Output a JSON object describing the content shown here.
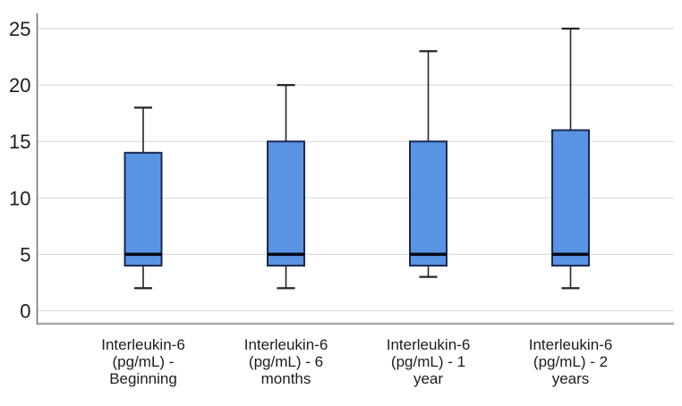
{
  "chart_data": {
    "type": "boxplot",
    "title": "",
    "xlabel": "",
    "ylabel": "",
    "grid": true,
    "legend": "none",
    "ylim": [
      0,
      25
    ],
    "yticks": [
      0,
      5,
      10,
      15,
      20,
      25
    ],
    "ytick_labels": [
      "0",
      "5",
      "10",
      "15",
      "20",
      "25"
    ],
    "categories": [
      "Interleukin-6 (pg/mL) - Beginning",
      "Interleukin-6 (pg/mL) - 6 months",
      "Interleukin-6 (pg/mL) - 1 year",
      "Interleukin-6 (pg/mL) - 2 years"
    ],
    "category_label_lines": [
      [
        "Interleukin-6",
        "(pg/mL) -",
        "Beginning"
      ],
      [
        "Interleukin-6",
        "(pg/mL) - 6",
        "months"
      ],
      [
        "Interleukin-6",
        "(pg/mL) - 1",
        "year"
      ],
      [
        "Interleukin-6",
        "(pg/mL) - 2",
        "years"
      ]
    ],
    "series": [
      {
        "label": "Interleukin-6 (pg/mL) - Beginning",
        "min": 2,
        "q1": 4,
        "median": 5,
        "q3": 14,
        "max": 18
      },
      {
        "label": "Interleukin-6 (pg/mL) - 6 months",
        "min": 2,
        "q1": 4,
        "median": 5,
        "q3": 15,
        "max": 20
      },
      {
        "label": "Interleukin-6 (pg/mL) - 1 year",
        "min": 3,
        "q1": 4,
        "median": 5,
        "q3": 15,
        "max": 23
      },
      {
        "label": "Interleukin-6 (pg/mL) - 2 years",
        "min": 2,
        "q1": 4,
        "median": 5,
        "q3": 16,
        "max": 25
      }
    ],
    "colors": {
      "box_fill": "#5994E3",
      "box_border": "#1A2A52",
      "median_line": "#000614",
      "whisker": "#262626",
      "gridline": "#D6D6D6",
      "y_axis_line": "#6E6E6E",
      "x_axis_line": "#A8A8A8",
      "text": "#1C1C1C",
      "background": "#FFFFFF"
    }
  }
}
